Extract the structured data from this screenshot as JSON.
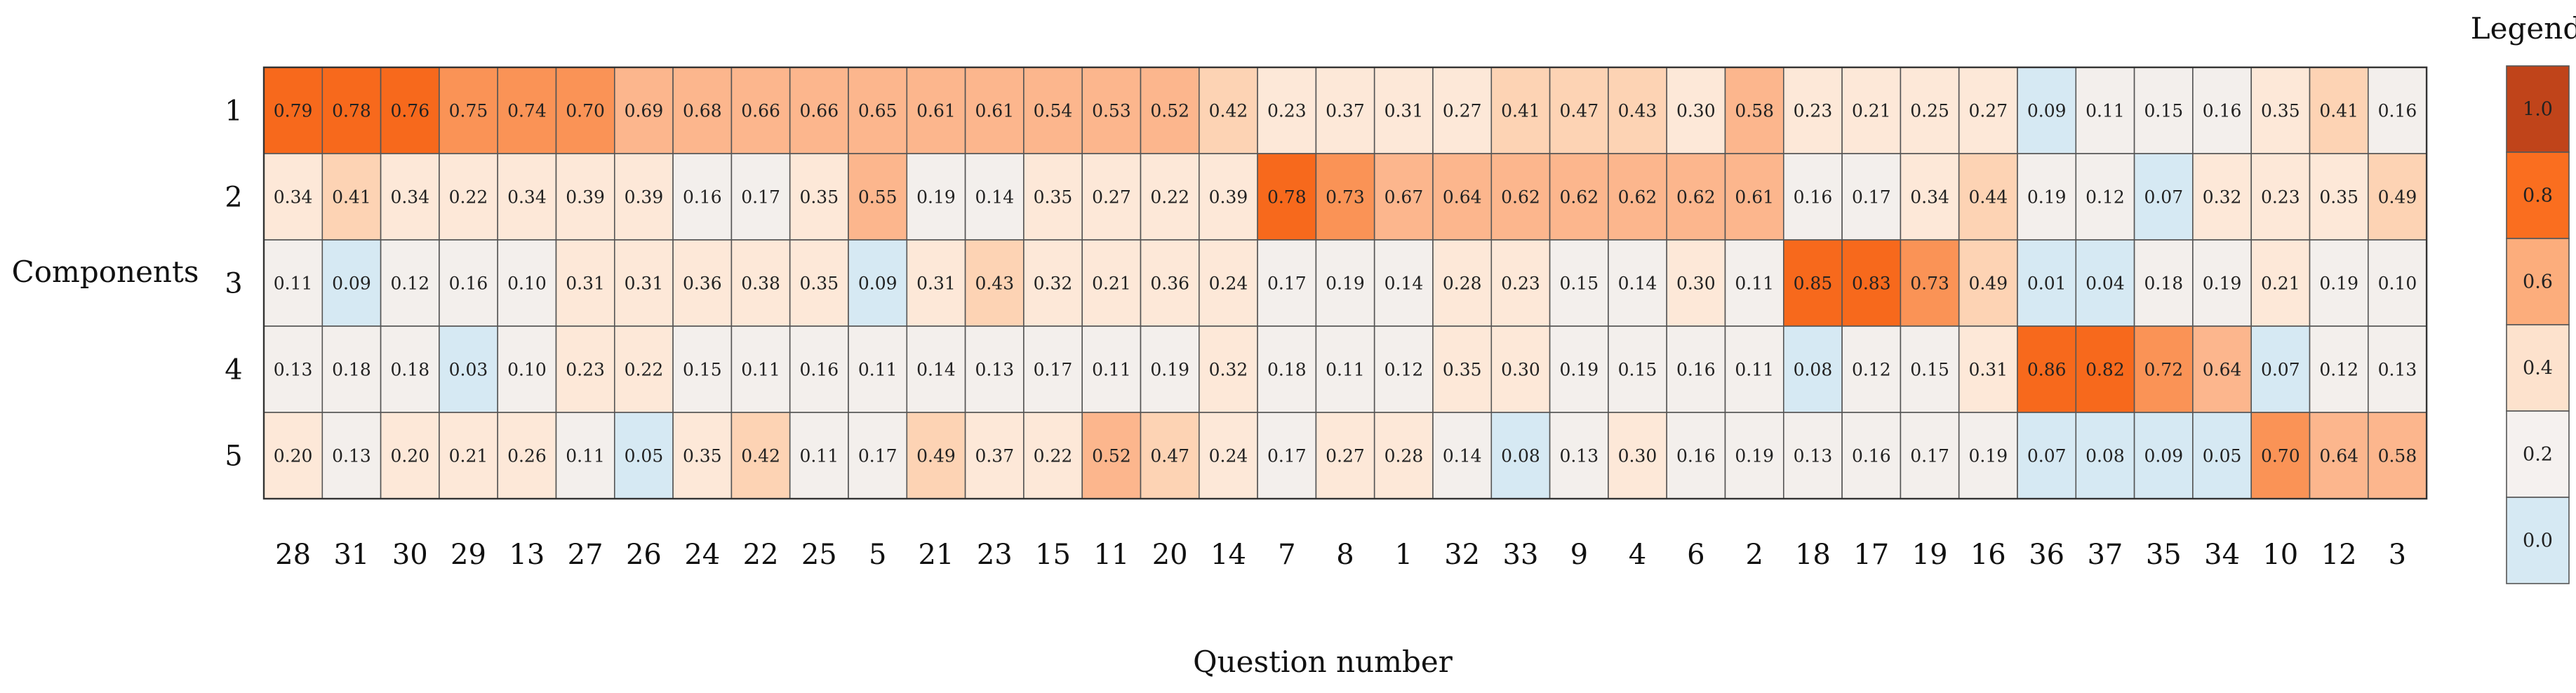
{
  "chart_data": {
    "type": "heatmap",
    "xlabel": "Question number",
    "ylabel": "Components",
    "legend_title": "Legend",
    "x_categories": [
      "28",
      "31",
      "30",
      "29",
      "13",
      "27",
      "26",
      "24",
      "22",
      "25",
      "5",
      "21",
      "23",
      "15",
      "11",
      "20",
      "14",
      "7",
      "8",
      "1",
      "32",
      "33",
      "9",
      "4",
      "6",
      "2",
      "18",
      "17",
      "19",
      "16",
      "36",
      "37",
      "35",
      "34",
      "10",
      "12",
      "3"
    ],
    "y_categories": [
      "1",
      "2",
      "3",
      "4",
      "5"
    ],
    "values": [
      [
        0.79,
        0.78,
        0.76,
        0.75,
        0.74,
        0.7,
        0.69,
        0.68,
        0.66,
        0.66,
        0.65,
        0.61,
        0.61,
        0.54,
        0.53,
        0.52,
        0.42,
        0.23,
        0.37,
        0.31,
        0.27,
        0.41,
        0.47,
        0.43,
        0.3,
        0.58,
        0.23,
        0.21,
        0.25,
        0.27,
        0.09,
        0.11,
        0.15,
        0.16,
        0.35,
        0.41,
        0.16
      ],
      [
        0.34,
        0.41,
        0.34,
        0.22,
        0.34,
        0.39,
        0.39,
        0.16,
        0.17,
        0.35,
        0.55,
        0.19,
        0.14,
        0.35,
        0.27,
        0.22,
        0.39,
        0.78,
        0.73,
        0.67,
        0.64,
        0.62,
        0.62,
        0.62,
        0.62,
        0.61,
        0.16,
        0.17,
        0.34,
        0.44,
        0.19,
        0.12,
        0.07,
        0.32,
        0.23,
        0.35,
        0.49
      ],
      [
        0.11,
        0.09,
        0.12,
        0.16,
        0.1,
        0.31,
        0.31,
        0.36,
        0.38,
        0.35,
        0.09,
        0.31,
        0.43,
        0.32,
        0.21,
        0.36,
        0.24,
        0.17,
        0.19,
        0.14,
        0.28,
        0.23,
        0.15,
        0.14,
        0.3,
        0.11,
        0.85,
        0.83,
        0.73,
        0.49,
        0.01,
        0.04,
        0.18,
        0.19,
        0.21,
        0.19,
        0.1
      ],
      [
        0.13,
        0.18,
        0.18,
        0.03,
        0.1,
        0.23,
        0.22,
        0.15,
        0.11,
        0.16,
        0.11,
        0.14,
        0.13,
        0.17,
        0.11,
        0.19,
        0.32,
        0.18,
        0.11,
        0.12,
        0.35,
        0.3,
        0.19,
        0.15,
        0.16,
        0.11,
        0.08,
        0.12,
        0.15,
        0.31,
        0.86,
        0.82,
        0.72,
        0.64,
        0.07,
        0.12,
        0.13
      ],
      [
        0.2,
        0.13,
        0.2,
        0.21,
        0.26,
        0.11,
        0.05,
        0.35,
        0.42,
        0.11,
        0.17,
        0.49,
        0.37,
        0.22,
        0.52,
        0.47,
        0.24,
        0.17,
        0.27,
        0.28,
        0.14,
        0.08,
        0.13,
        0.3,
        0.16,
        0.19,
        0.13,
        0.16,
        0.17,
        0.19,
        0.07,
        0.08,
        0.09,
        0.05,
        0.7,
        0.64,
        0.58
      ]
    ],
    "legend": {
      "labels": [
        "1.0",
        "0.8",
        "0.6",
        "0.4",
        "0.2",
        "0.0"
      ],
      "colors": [
        "#c0441a",
        "#fa6e1f",
        "#fcad7c",
        "#fde2cd",
        "#f5f1ef",
        "#d6e9f3"
      ]
    },
    "color_scale": {
      "bins": [
        {
          "min": 0.0,
          "max": 0.1,
          "color": "#d6e9f3"
        },
        {
          "min": 0.1,
          "max": 0.2,
          "color": "#f3efec"
        },
        {
          "min": 0.2,
          "max": 0.4,
          "color": "#fde8d8"
        },
        {
          "min": 0.4,
          "max": 0.5,
          "color": "#fdd3b4"
        },
        {
          "min": 0.5,
          "max": 0.7,
          "color": "#fcb68d"
        },
        {
          "min": 0.7,
          "max": 0.76,
          "color": "#fa9356"
        },
        {
          "min": 0.76,
          "max": 1.01,
          "color": "#f7691c"
        }
      ]
    }
  }
}
